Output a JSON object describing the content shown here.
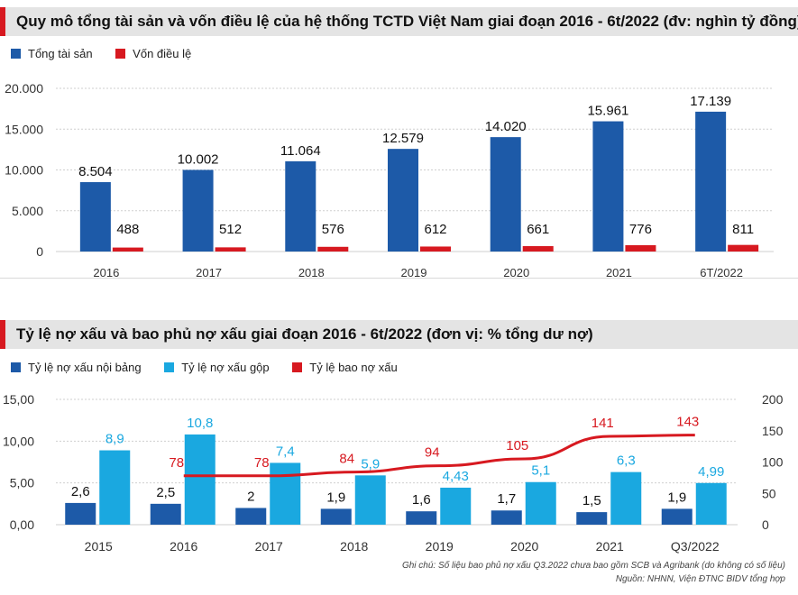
{
  "titles": {
    "chart1": "Quy mô tổng tài sản và vốn điều lệ của hệ thống TCTD Việt Nam giai đoạn 2016 - 6t/2022 (đv: nghìn tỷ đồng)",
    "chart2": "Tỷ lệ nợ xấu và bao phủ nợ xấu giai đoạn 2016 - 6t/2022 (đơn vị: % tổng dư nợ)"
  },
  "colors": {
    "dark_blue": "#1d5aa8",
    "light_blue": "#1aa8e0",
    "red": "#d71920"
  },
  "notes": {
    "line1": "Ghi chú: Số liệu bao phủ nợ xấu Q3.2022 chưa bao gồm SCB và Agribank (do không có số liệu)",
    "line2": "Nguồn: NHNN, Viện ĐTNC BIDV tổng hợp"
  },
  "chart_data": [
    {
      "type": "bar",
      "title": "Quy mô tổng tài sản và vốn điều lệ của hệ thống TCTD Việt Nam giai đoạn 2016 - 6t/2022 (đv: nghìn tỷ đồng)",
      "categories": [
        "2016",
        "2017",
        "2018",
        "2019",
        "2020",
        "2021",
        "6T/2022"
      ],
      "series": [
        {
          "name": "Tổng tài sản",
          "values": [
            8504,
            10002,
            11064,
            12579,
            14020,
            15961,
            17139
          ],
          "labels": [
            "8.504",
            "10.002",
            "11.064",
            "12.579",
            "14.020",
            "15.961",
            "17.139"
          ]
        },
        {
          "name": "Vốn điều lệ",
          "values": [
            488,
            512,
            576,
            612,
            661,
            776,
            811
          ],
          "labels": [
            "488",
            "512",
            "576",
            "612",
            "661",
            "776",
            "811"
          ]
        }
      ],
      "ylim": [
        0,
        20000
      ],
      "yticks": [
        0,
        5000,
        10000,
        15000,
        20000
      ],
      "ytick_labels": [
        "0",
        "5.000",
        "10.000",
        "15.000",
        "20.000"
      ],
      "grid": true,
      "legend": "top-left"
    },
    {
      "type": "bar",
      "title": "Tỷ lệ nợ xấu và bao phủ nợ xấu giai đoạn 2016 - 6t/2022 (đơn vị: % tổng dư nợ)",
      "categories": [
        "2015",
        "2016",
        "2017",
        "2018",
        "2019",
        "2020",
        "2021",
        "Q3/2022"
      ],
      "series": [
        {
          "name": "Tỷ lệ nợ xấu nội bảng",
          "type": "bar",
          "axis": "left",
          "values": [
            2.6,
            2.5,
            2.0,
            1.9,
            1.6,
            1.7,
            1.5,
            1.9
          ],
          "labels": [
            "2,6",
            "2,5",
            "2",
            "1,9",
            "1,6",
            "1,7",
            "1,5",
            "1,9"
          ]
        },
        {
          "name": "Tỷ lệ nợ xấu gộp",
          "type": "bar",
          "axis": "left",
          "values": [
            8.9,
            10.8,
            7.4,
            5.9,
            4.43,
            5.1,
            6.3,
            4.99
          ],
          "labels": [
            "8,9",
            "10,8",
            "7,4",
            "5,9",
            "4,43",
            "5,1",
            "6,3",
            "4,99"
          ]
        },
        {
          "name": "Tỷ lệ bao nợ xấu",
          "type": "line",
          "axis": "right",
          "values": [
            null,
            78,
            78,
            84,
            94,
            105,
            141,
            143
          ],
          "labels": [
            null,
            "78",
            "78",
            "84",
            "94",
            "105",
            "141",
            "143"
          ]
        }
      ],
      "ylim": [
        0,
        15
      ],
      "yticks": [
        0,
        5,
        10,
        15
      ],
      "ytick_labels": [
        "0,00",
        "5,00",
        "10,00",
        "15,00"
      ],
      "y2lim": [
        0,
        200
      ],
      "y2ticks": [
        0,
        50,
        100,
        150,
        200
      ],
      "y2tick_labels": [
        "0",
        "50",
        "100",
        "150",
        "200"
      ],
      "grid": true,
      "legend": "top-left"
    }
  ]
}
